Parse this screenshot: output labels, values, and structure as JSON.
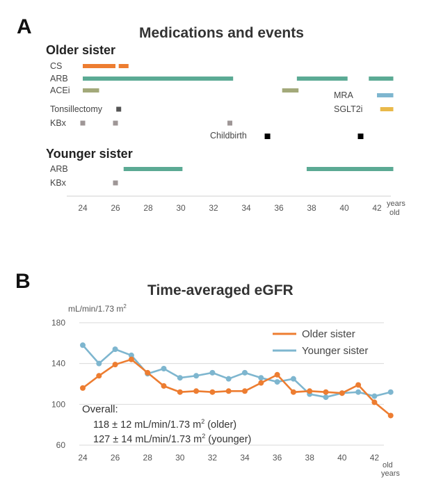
{
  "panel_a": {
    "letter": "A",
    "title": "Medications and events",
    "older_title": "Older sister",
    "younger_title": "Younger sister",
    "labels": {
      "cs": "CS",
      "arb": "ARB",
      "acei": "ACEi",
      "tonsillectomy": "Tonsillectomy",
      "kbx": "KBx",
      "childbirth": "Childbirth",
      "mra": "MRA",
      "sglt2i": "SGLT2i",
      "y_arb": "ARB",
      "y_kbx": "KBx"
    },
    "x_ticks": [
      "24",
      "26",
      "28",
      "30",
      "32",
      "34",
      "36",
      "38",
      "40",
      "42"
    ],
    "x_unit_1": "years",
    "x_unit_2": "old"
  },
  "panel_b": {
    "letter": "B",
    "title": "Time-averaged eGFR",
    "unit_prefix": "mL/min/1.73 m",
    "unit_sup": "2",
    "y_ticks": [
      "180",
      "140",
      "100",
      "60"
    ],
    "x_ticks": [
      "24",
      "26",
      "28",
      "30",
      "32",
      "34",
      "36",
      "38",
      "40",
      "42"
    ],
    "x_unit_1": "years",
    "x_unit_2": "old",
    "overall_label": "Overall:",
    "overall_older": "118 ± 12  mL/min/1.73 m",
    "overall_older_sup": "2",
    "overall_older_tag": " (older)",
    "overall_younger": "127 ± 14 mL/min/1.73 m",
    "overall_younger_sup": "2",
    "overall_younger_tag": " (younger)"
  },
  "colors": {
    "orange": "#ED7D31",
    "teal": "#5BAA94",
    "olive": "#A3A97A",
    "dark_square": "#555555",
    "kbx_square": "#9E9696",
    "black_square": "#000000",
    "mra_blue": "#7EB6CF",
    "sglt2i_gold": "#E9B94A",
    "older_line": "#ED7D31",
    "younger_line": "#7EB6CF"
  },
  "chart_data": [
    {
      "type": "timeline",
      "title": "Medications and events",
      "x_range": [
        23.0,
        43.5
      ],
      "older_sister": {
        "bars": [
          {
            "label": "CS",
            "segments": [
              [
                24.0,
                26.0
              ],
              [
                26.2,
                26.8
              ]
            ]
          },
          {
            "label": "ARB",
            "segments": [
              [
                24.0,
                33.2
              ],
              [
                37.1,
                40.2
              ],
              [
                41.5,
                43.0
              ]
            ]
          },
          {
            "label": "ACEi",
            "segments": [
              [
                24.0,
                25.0
              ],
              [
                36.2,
                37.2
              ]
            ]
          },
          {
            "label": "MRA",
            "segments": [
              [
                42.0,
                43.0
              ]
            ]
          },
          {
            "label": "SGLT2i",
            "segments": [
              [
                42.2,
                43.0
              ]
            ]
          }
        ],
        "events": [
          {
            "label": "Tonsillectomy",
            "x": [
              26.2
            ]
          },
          {
            "label": "KBx",
            "x": [
              24.0,
              26.0,
              33.0
            ]
          },
          {
            "label": "Childbirth",
            "x": [
              35.3,
              41.0
            ]
          }
        ]
      },
      "younger_sister": {
        "bars": [
          {
            "label": "ARB",
            "segments": [
              [
                26.5,
                30.1
              ],
              [
                37.7,
                43.0
              ]
            ]
          }
        ],
        "events": [
          {
            "label": "KBx",
            "x": [
              26.0
            ]
          }
        ]
      }
    },
    {
      "type": "line",
      "title": "Time-averaged eGFR",
      "ylabel": "mL/min/1.73 m2",
      "xlabel": "years old",
      "ylim": [
        60,
        180
      ],
      "xlim": [
        23.5,
        43.5
      ],
      "legend": "top-right",
      "series": [
        {
          "name": "Older sister",
          "x": [
            24,
            25,
            26,
            27,
            28,
            29,
            30,
            31,
            32,
            33,
            34,
            35,
            36,
            37,
            38,
            39,
            40,
            41,
            42,
            43
          ],
          "values": [
            116,
            128,
            139,
            144,
            131,
            118,
            112,
            113,
            112,
            113,
            113,
            121,
            129,
            112,
            113,
            112,
            111,
            119,
            102,
            89
          ]
        },
        {
          "name": "Younger sister",
          "x": [
            24,
            25,
            26,
            27,
            28,
            29,
            30,
            31,
            32,
            33,
            34,
            35,
            36,
            37,
            38,
            39,
            40,
            41,
            42,
            43
          ],
          "values": [
            158,
            140,
            154,
            148,
            130,
            135,
            126,
            128,
            131,
            125,
            131,
            126,
            122,
            125,
            110,
            107,
            111,
            112,
            108,
            112
          ]
        }
      ]
    }
  ]
}
